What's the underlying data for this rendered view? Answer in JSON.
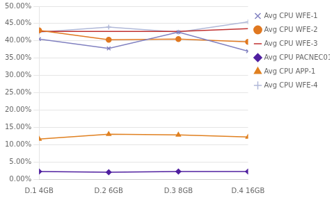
{
  "chart_data": {
    "type": "line",
    "categories": [
      "D.1 4GB",
      "D.2 6GB",
      "D.3 8GB",
      "D.4 16GB"
    ],
    "series": [
      {
        "name": "Avg CPU WFE-1",
        "values": [
          0.405,
          0.378,
          0.425,
          0.37
        ],
        "color": "#8080C0",
        "marker": "x",
        "line_style": "solid"
      },
      {
        "name": "Avg CPU WFE-2",
        "values": [
          0.43,
          0.403,
          0.405,
          0.397
        ],
        "color": "#E07820",
        "marker": "o",
        "line_style": "solid"
      },
      {
        "name": "Avg CPU WFE-3",
        "values": [
          0.427,
          0.427,
          0.427,
          0.435
        ],
        "color": "#C03030",
        "line_style": "solid"
      },
      {
        "name": "Avg CPU PACNEC01",
        "values": [
          0.022,
          0.02,
          0.022,
          0.022
        ],
        "color": "#5020A0",
        "marker": "D",
        "line_style": "solid"
      },
      {
        "name": "Avg CPU APP-1",
        "values": [
          0.116,
          0.13,
          0.128,
          0.122
        ],
        "color": "#E08020",
        "marker": "^",
        "line_style": "solid"
      },
      {
        "name": "Avg CPU WFE-4",
        "values": [
          0.425,
          0.44,
          0.425,
          0.455
        ],
        "color": "#B0B8D8",
        "marker": "P",
        "line_style": "solid"
      }
    ],
    "ylim": [
      0.0,
      0.5
    ],
    "yticks": [
      {
        "value": 0.0,
        "label": "0.00%"
      },
      {
        "value": 0.05,
        "label": "5.00%"
      },
      {
        "value": 0.1,
        "label": "10.00%"
      },
      {
        "value": 0.15,
        "label": "15.00%"
      },
      {
        "value": 0.2,
        "label": "20.00%"
      },
      {
        "value": 0.25,
        "label": "25.00%"
      },
      {
        "value": 0.3,
        "label": "30.00%"
      },
      {
        "value": 0.35,
        "label": "35.00%"
      },
      {
        "value": 0.4,
        "label": "40.00%"
      },
      {
        "value": 0.45,
        "label": "45.00%"
      },
      {
        "value": 0.5,
        "label": "50.00%"
      }
    ],
    "grid": "y",
    "legend": "right"
  }
}
